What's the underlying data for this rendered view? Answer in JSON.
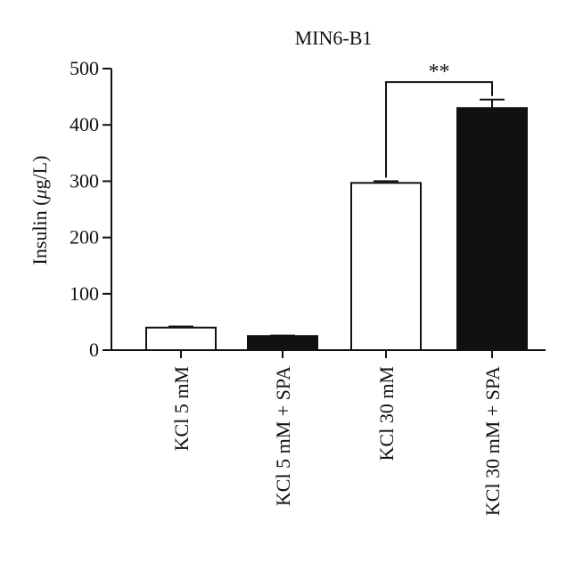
{
  "chart_data": {
    "type": "bar",
    "title": "MIN6-B1",
    "ylabel_prefix": "Insulin (",
    "ylabel_mu": "μ",
    "ylabel_suffix": "g/L)",
    "ylim": [
      0,
      500
    ],
    "yticks": [
      0,
      100,
      200,
      300,
      400,
      500
    ],
    "categories": [
      "KCl 5 mM",
      "KCl 5 mM + SPA",
      "KCl 30 mM",
      "KCl 30 mM + SPA"
    ],
    "values": [
      40,
      25,
      297,
      430
    ],
    "errors": [
      2,
      1,
      3,
      15
    ],
    "fills": [
      "#ffffff",
      "#111111",
      "#ffffff",
      "#111111"
    ],
    "significance": {
      "from": 2,
      "to": 3,
      "label": "**",
      "y": 476
    },
    "grid": false,
    "legend": "none"
  }
}
